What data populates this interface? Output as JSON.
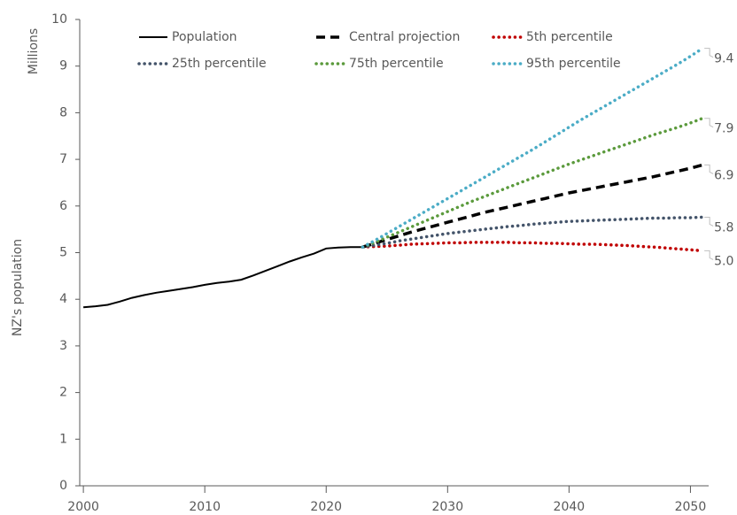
{
  "chart_data": {
    "type": "line",
    "y_unit_label": "Millions",
    "y_axis_label": "NZ's population",
    "x": [
      2000,
      2001,
      2002,
      2003,
      2004,
      2005,
      2006,
      2007,
      2008,
      2009,
      2010,
      2011,
      2012,
      2013,
      2014,
      2015,
      2016,
      2017,
      2018,
      2019,
      2020,
      2021,
      2022,
      2023,
      2024,
      2025,
      2026,
      2027,
      2028,
      2029,
      2030,
      2031,
      2032,
      2033,
      2034,
      2035,
      2036,
      2037,
      2038,
      2039,
      2040,
      2041,
      2042,
      2043,
      2044,
      2045,
      2046,
      2047,
      2048,
      2049,
      2050,
      2051
    ],
    "xlim": [
      1999.7,
      2051.5
    ],
    "xticks": [
      2000,
      2010,
      2020,
      2030,
      2040,
      2050
    ],
    "ylim": [
      0,
      10
    ],
    "yticks": [
      0,
      1,
      2,
      3,
      4,
      5,
      6,
      7,
      8,
      9,
      10
    ],
    "series": [
      {
        "name": "Population",
        "color": "#000000",
        "dash": "solid",
        "values": [
          3.83,
          3.85,
          3.88,
          3.95,
          4.03,
          4.09,
          4.14,
          4.18,
          4.22,
          4.26,
          4.31,
          4.35,
          4.38,
          4.42,
          4.51,
          4.61,
          4.71,
          4.81,
          4.9,
          4.98,
          5.09,
          5.11,
          5.12,
          5.12,
          null,
          null,
          null,
          null,
          null,
          null,
          null,
          null,
          null,
          null,
          null,
          null,
          null,
          null,
          null,
          null,
          null,
          null,
          null,
          null,
          null,
          null,
          null,
          null,
          null,
          null,
          null,
          null
        ]
      },
      {
        "name": "Central projection",
        "color": "#000000",
        "dash": "dashed",
        "values": [
          null,
          null,
          null,
          null,
          null,
          null,
          null,
          null,
          null,
          null,
          null,
          null,
          null,
          null,
          null,
          null,
          null,
          null,
          null,
          null,
          null,
          null,
          null,
          5.12,
          5.2,
          5.28,
          5.36,
          5.44,
          5.51,
          5.58,
          5.65,
          5.72,
          5.79,
          5.86,
          5.92,
          5.98,
          6.04,
          6.1,
          6.16,
          6.22,
          6.28,
          6.33,
          6.38,
          6.43,
          6.48,
          6.53,
          6.58,
          6.63,
          6.69,
          6.75,
          6.81,
          6.88
        ],
        "end_label": "6.9"
      },
      {
        "name": "5th percentile",
        "color": "#c00000",
        "dash": "dotted",
        "values": [
          null,
          null,
          null,
          null,
          null,
          null,
          null,
          null,
          null,
          null,
          null,
          null,
          null,
          null,
          null,
          null,
          null,
          null,
          null,
          null,
          null,
          null,
          null,
          5.12,
          5.13,
          5.14,
          5.16,
          5.18,
          5.19,
          5.2,
          5.21,
          5.21,
          5.22,
          5.22,
          5.22,
          5.22,
          5.21,
          5.21,
          5.2,
          5.2,
          5.19,
          5.18,
          5.18,
          5.17,
          5.16,
          5.15,
          5.13,
          5.12,
          5.1,
          5.08,
          5.06,
          5.04
        ],
        "end_label": "5.0"
      },
      {
        "name": "25th percentile",
        "color": "#44546a",
        "dash": "dotted",
        "values": [
          null,
          null,
          null,
          null,
          null,
          null,
          null,
          null,
          null,
          null,
          null,
          null,
          null,
          null,
          null,
          null,
          null,
          null,
          null,
          null,
          null,
          null,
          null,
          5.12,
          5.16,
          5.2,
          5.25,
          5.29,
          5.33,
          5.37,
          5.41,
          5.44,
          5.47,
          5.5,
          5.53,
          5.56,
          5.58,
          5.61,
          5.63,
          5.65,
          5.67,
          5.68,
          5.69,
          5.7,
          5.71,
          5.72,
          5.73,
          5.74,
          5.74,
          5.75,
          5.75,
          5.76
        ],
        "end_label": "5.8"
      },
      {
        "name": "75th percentile",
        "color": "#5b9a3c",
        "dash": "dotted",
        "values": [
          null,
          null,
          null,
          null,
          null,
          null,
          null,
          null,
          null,
          null,
          null,
          null,
          null,
          null,
          null,
          null,
          null,
          null,
          null,
          null,
          null,
          null,
          null,
          5.12,
          5.22,
          5.33,
          5.44,
          5.55,
          5.66,
          5.77,
          5.88,
          5.99,
          6.1,
          6.2,
          6.3,
          6.4,
          6.5,
          6.6,
          6.7,
          6.8,
          6.9,
          6.99,
          7.08,
          7.17,
          7.26,
          7.35,
          7.44,
          7.53,
          7.61,
          7.69,
          7.78,
          7.88
        ],
        "end_label": "7.9"
      },
      {
        "name": "95th percentile",
        "color": "#4bacc6",
        "dash": "dotted",
        "values": [
          null,
          null,
          null,
          null,
          null,
          null,
          null,
          null,
          null,
          null,
          null,
          null,
          null,
          null,
          null,
          null,
          null,
          null,
          null,
          null,
          null,
          null,
          null,
          5.12,
          5.26,
          5.41,
          5.56,
          5.71,
          5.86,
          6.01,
          6.16,
          6.31,
          6.46,
          6.61,
          6.76,
          6.91,
          7.06,
          7.21,
          7.37,
          7.53,
          7.69,
          7.85,
          8.0,
          8.15,
          8.3,
          8.45,
          8.6,
          8.75,
          8.9,
          9.05,
          9.21,
          9.38
        ],
        "end_label": "9.4"
      }
    ]
  }
}
